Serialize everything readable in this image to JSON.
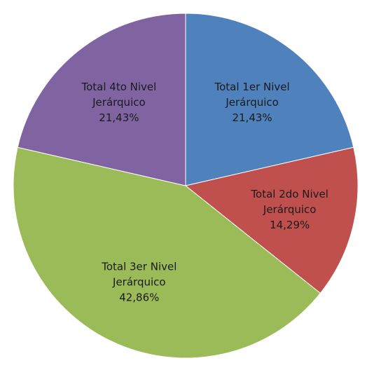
{
  "chart_data": {
    "type": "pie",
    "slices": [
      {
        "name": "Total 1er Nivel",
        "name2": "Jerárquico",
        "value": 21.43,
        "label": "21,43%",
        "color": "#4f81bd"
      },
      {
        "name": "Total 2do Nivel",
        "name2": "Jerárquico",
        "value": 14.29,
        "label": "14,29%",
        "color": "#c0504d"
      },
      {
        "name": "Total 3er Nivel",
        "name2": "Jerárquico",
        "value": 42.86,
        "label": "42,86%",
        "color": "#9bbb59"
      },
      {
        "name": "Total 4to Nivel",
        "name2": "Jerárquico",
        "value": 21.43,
        "label": "21,43%",
        "color": "#8064a2"
      }
    ],
    "start": "12 o'clock",
    "direction": "clockwise",
    "legend": "none",
    "data_labels": "inside"
  }
}
